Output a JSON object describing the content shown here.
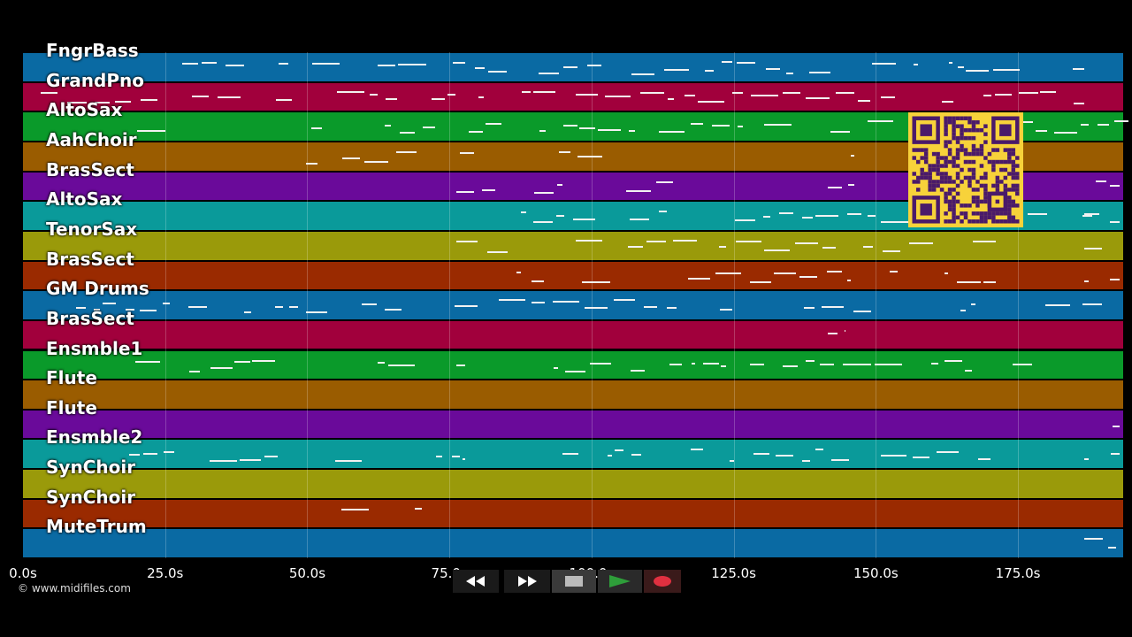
{
  "tracks": [
    {
      "name": "FngrBass",
      "color": "#0a6aa3"
    },
    {
      "name": "GrandPno",
      "color": "#a1003c"
    },
    {
      "name": "AltoSax",
      "color": "#0a9a2a"
    },
    {
      "name": "AahChoir",
      "color": "#9a5c00"
    },
    {
      "name": "BrasSect",
      "color": "#6a0a9a"
    },
    {
      "name": "AltoSax",
      "color": "#0a9a9a"
    },
    {
      "name": "TenorSax",
      "color": "#9a9a0a"
    },
    {
      "name": "BrasSect",
      "color": "#9a2a00"
    },
    {
      "name": "GM Drums",
      "color": "#0a6aa3"
    },
    {
      "name": "BrasSect",
      "color": "#a1003c"
    },
    {
      "name": "Ensmble1",
      "color": "#0a9a2a"
    },
    {
      "name": "Flute",
      "color": "#9a5c00"
    },
    {
      "name": "Flute",
      "color": "#6a0a9a"
    },
    {
      "name": "Ensmble2",
      "color": "#0a9a9a"
    },
    {
      "name": "SynChoir",
      "color": "#9a9a0a"
    },
    {
      "name": "SynChoir",
      "color": "#9a2a00"
    },
    {
      "name": "MuteTrum",
      "color": "#0a6aa3"
    }
  ],
  "timeline": {
    "ticks": [
      "0.0s",
      "25.0s",
      "50.0s",
      "75.0s",
      "100.0s",
      "125.0s",
      "150.0s",
      "175.0s"
    ],
    "tick_values": [
      0,
      25,
      50,
      75,
      100,
      125,
      150,
      175
    ],
    "max_seconds": 193.5
  },
  "copyright": "© www.midifiles.com",
  "transport": {
    "rewind_icon": "rewind-icon",
    "fast_forward_icon": "fast-forward-icon",
    "stop_icon": "stop-icon",
    "play_icon": "play-icon",
    "record_icon": "record-icon",
    "play_color": "#2e9e3a",
    "record_color": "#e03040"
  },
  "qr_code": {
    "fg": "#4a1a6a",
    "bg": "#f7d23a"
  }
}
